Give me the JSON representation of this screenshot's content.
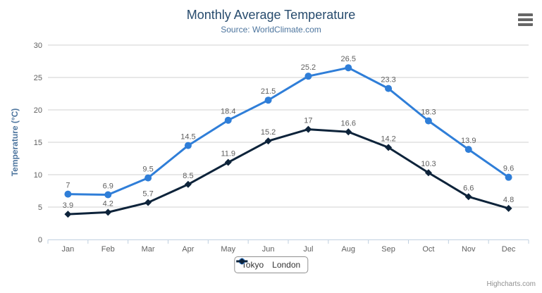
{
  "credits": "Highcharts.com",
  "menu_icon": "hamburger-icon",
  "colors": {
    "title": "#274b6d",
    "subtitle": "#4d759e",
    "axis_title": "#4d759e",
    "labels": "#606060",
    "data_labels": "#606060",
    "grid": "#d0d0d0",
    "axis_line": "#c0d0e0",
    "legend_border": "#909090",
    "legend_text": "#333333",
    "credits": "#909090",
    "menu_icon": "#666666",
    "background": "#ffffff"
  },
  "chart_data": {
    "type": "line",
    "title": "Monthly Average Temperature",
    "subtitle": "Source: WorldClimate.com",
    "xlabel": "",
    "ylabel": "Temperature (°C)",
    "ylim": [
      0,
      30
    ],
    "ytick_interval": 5,
    "grid": true,
    "legend_position": "bottom",
    "categories": [
      "Jan",
      "Feb",
      "Mar",
      "Apr",
      "May",
      "Jun",
      "Jul",
      "Aug",
      "Sep",
      "Oct",
      "Nov",
      "Dec"
    ],
    "series": [
      {
        "name": "Tokyo",
        "color": "#2f7ed8",
        "marker": "circle",
        "values": [
          7,
          6.9,
          9.5,
          14.5,
          18.4,
          21.5,
          25.2,
          26.5,
          23.3,
          18.3,
          13.9,
          9.6
        ]
      },
      {
        "name": "London",
        "color": "#0d233a",
        "marker": "diamond",
        "values": [
          3.9,
          4.2,
          5.7,
          8.5,
          11.9,
          15.2,
          17,
          16.6,
          14.2,
          10.3,
          6.6,
          4.8
        ]
      }
    ]
  }
}
